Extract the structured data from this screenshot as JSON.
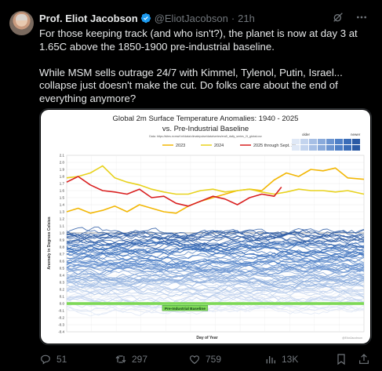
{
  "author": {
    "name": "Prof. Eliot Jacobson",
    "handle": "@EliotJacobson",
    "separator": "·",
    "time": "21h"
  },
  "tweet": {
    "paragraph1": "For those keeping track (and who isn't?), the planet is now at day 3 at 1.65C above the 1850-1900 pre-industrial baseline.",
    "paragraph2": "While MSM sells outrage 24/7 with Kimmel, Tylenol, Putin, Israel... collapse just doesn't make the cut. Do folks care about the end of everything anymore?"
  },
  "actions": {
    "replies": "51",
    "reposts": "297",
    "likes": "759",
    "views": "13K"
  },
  "icons": {
    "verified": "verified-badge-icon",
    "grok": "grok-icon",
    "more": "more-icon",
    "reply": "reply-icon",
    "repost": "repost-icon",
    "like": "like-icon",
    "views": "views-icon",
    "bookmark": "bookmark-icon",
    "share": "share-icon"
  },
  "colors": {
    "accent_blue": "#1d9bf0",
    "muted": "#71767b",
    "line_2023": "#f2b705",
    "line_2024": "#e8d21d",
    "line_2025": "#d92020",
    "baseline_band": "#7ed957"
  },
  "chart_data": {
    "type": "line",
    "title": "Global 2m Surface Temperature Anomalies: 1940 - 2025",
    "subtitle": "vs. Pre-Industrial Baseline",
    "source": "Data: https://sites.ecmwf.int/data/climatepulse/data/series/era5_daily_series_2t_global.csv",
    "xlabel": "Day of Year",
    "ylabel": "Anomaly in Degrees Celsius",
    "ylim": [
      -0.4,
      2.1
    ],
    "yticks": [
      "2.1",
      "2.0",
      "1.9",
      "1.8",
      "1.7",
      "1.6",
      "1.5",
      "1.4",
      "1.3",
      "1.2",
      "1.1",
      "1.0",
      "0.9",
      "0.8",
      "0.7",
      "0.6",
      "0.5",
      "0.4",
      "0.3",
      "0.2",
      "0.1",
      "0.0",
      "-0.1",
      "-0.2",
      "-0.3",
      "-0.4"
    ],
    "legend": {
      "series": [
        "2023",
        "2024",
        "2025 through Sept. 21"
      ],
      "gradient_left": "older",
      "gradient_right": "newer"
    },
    "baseline_label": "Pre-Industrial Baseline",
    "watermark": "@EliotJacobson",
    "series": [
      {
        "name": "2023",
        "x": [
          1,
          15,
          30,
          45,
          60,
          75,
          90,
          105,
          120,
          135,
          150,
          165,
          180,
          195,
          210,
          225,
          240,
          255,
          270,
          285,
          300,
          315,
          330,
          345,
          365
        ],
        "values": [
          1.3,
          1.35,
          1.28,
          1.32,
          1.38,
          1.3,
          1.4,
          1.35,
          1.3,
          1.28,
          1.38,
          1.45,
          1.5,
          1.55,
          1.6,
          1.62,
          1.6,
          1.75,
          1.85,
          1.8,
          1.9,
          1.88,
          1.92,
          1.78,
          1.76
        ]
      },
      {
        "name": "2024",
        "x": [
          1,
          15,
          30,
          45,
          60,
          75,
          90,
          105,
          120,
          135,
          150,
          165,
          180,
          195,
          210,
          225,
          240,
          255,
          270,
          285,
          300,
          315,
          330,
          345,
          365
        ],
        "values": [
          1.78,
          1.8,
          1.85,
          1.95,
          1.78,
          1.72,
          1.68,
          1.62,
          1.58,
          1.55,
          1.55,
          1.6,
          1.62,
          1.58,
          1.6,
          1.62,
          1.58,
          1.55,
          1.58,
          1.62,
          1.6,
          1.6,
          1.58,
          1.6,
          1.55
        ]
      },
      {
        "name": "2025 through Sept. 21",
        "x": [
          1,
          15,
          30,
          45,
          60,
          75,
          90,
          105,
          120,
          135,
          150,
          165,
          180,
          195,
          210,
          225,
          240,
          255,
          264
        ],
        "values": [
          1.72,
          1.8,
          1.68,
          1.6,
          1.58,
          1.55,
          1.62,
          1.5,
          1.52,
          1.42,
          1.38,
          1.45,
          1.52,
          1.48,
          1.4,
          1.5,
          1.55,
          1.52,
          1.65
        ]
      }
    ]
  }
}
